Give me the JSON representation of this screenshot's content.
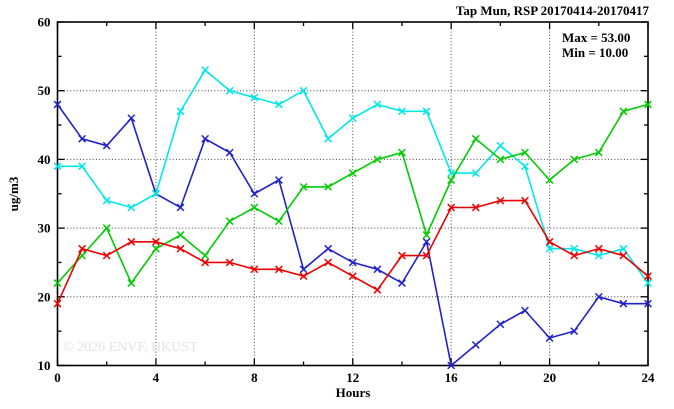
{
  "watermark": "© 2026 ENVF, HKUST",
  "chart_data": {
    "type": "line",
    "title": "Tap Mun, RSP 20170414-20170417",
    "xlabel": "Hours",
    "ylabel": "ug/m3",
    "xlim": [
      0,
      24
    ],
    "ylim": [
      10,
      60
    ],
    "xticks_major": [
      0,
      4,
      8,
      12,
      16,
      20,
      24
    ],
    "xtick_minor_step": 2,
    "yticks_major": [
      10,
      20,
      30,
      40,
      50,
      60
    ],
    "ytick_minor_step": 5,
    "grid": "dotted lines at major ticks, both axes",
    "legend": "none",
    "marker": "x",
    "background": "#ffffff",
    "annotations": {
      "max_label": "Max = 53.00",
      "min_label": "Min = 10.00"
    },
    "x": [
      0,
      1,
      2,
      3,
      4,
      5,
      6,
      7,
      8,
      9,
      10,
      11,
      12,
      13,
      14,
      15,
      16,
      17,
      18,
      19,
      20,
      21,
      22,
      23,
      24
    ],
    "series": [
      {
        "name": "blue",
        "color": "#2222cc",
        "values": [
          48,
          43,
          42,
          46,
          35,
          33,
          43,
          41,
          35,
          37,
          24,
          27,
          25,
          24,
          22,
          28,
          10,
          13,
          16,
          18,
          14,
          15,
          20,
          19,
          19
        ]
      },
      {
        "name": "cyan",
        "color": "#00e8e8",
        "values": [
          39,
          39,
          34,
          33,
          35,
          47,
          53,
          50,
          49,
          48,
          50,
          43,
          46,
          48,
          47,
          47,
          38,
          38,
          42,
          39,
          27,
          27,
          26,
          27,
          22
        ]
      },
      {
        "name": "green",
        "color": "#00cc00",
        "values": [
          22,
          26,
          30,
          22,
          27,
          29,
          26,
          31,
          33,
          31,
          36,
          36,
          38,
          40,
          41,
          29,
          37,
          43,
          40,
          41,
          37,
          40,
          41,
          47,
          48
        ]
      },
      {
        "name": "red",
        "color": "#ee0000",
        "values": [
          19,
          27,
          26,
          28,
          28,
          27,
          25,
          25,
          24,
          24,
          23,
          25,
          23,
          21,
          26,
          26,
          33,
          33,
          34,
          34,
          28,
          26,
          27,
          26,
          23
        ]
      }
    ]
  }
}
